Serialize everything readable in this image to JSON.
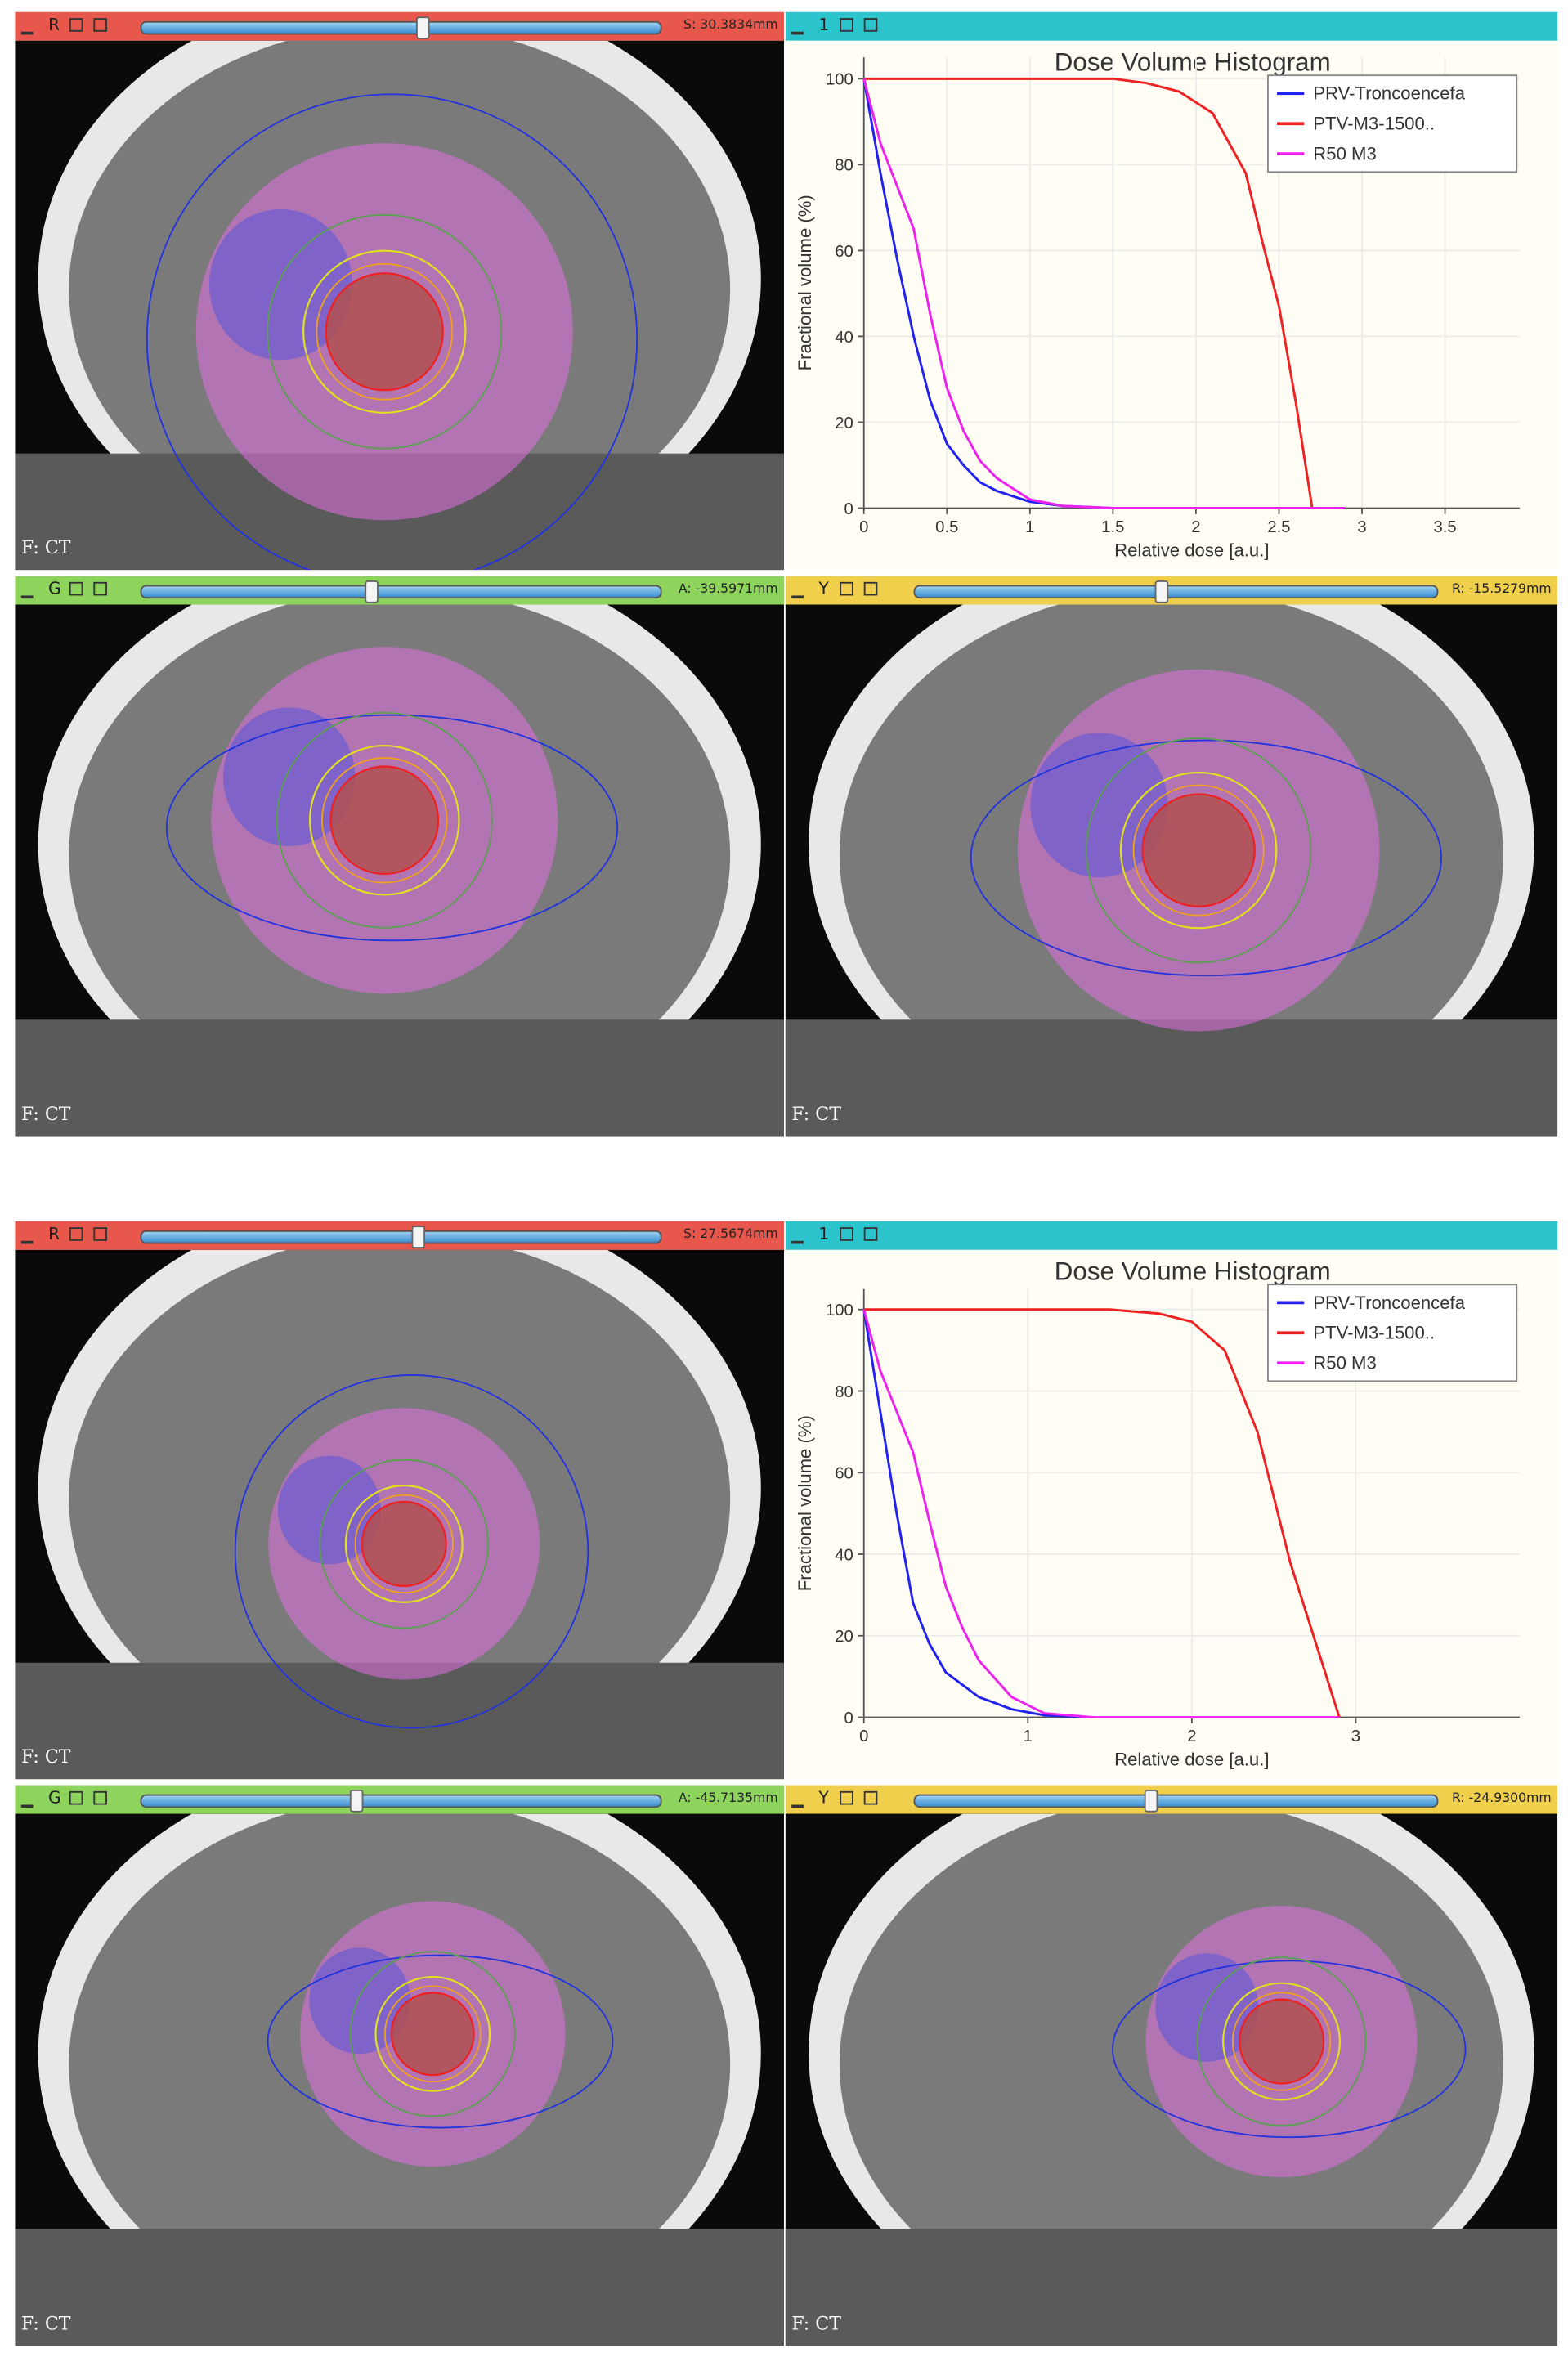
{
  "layouts": [
    {
      "views": [
        {
          "label": "R",
          "color": "#e8574b",
          "offset": "S: 30.3834mm",
          "footer": "F: CT"
        },
        {
          "label": "1",
          "color": "#2cc4cc"
        },
        {
          "label": "G",
          "color": "#8dd35c",
          "offset": "A: -39.5971mm",
          "footer": "F: CT"
        },
        {
          "label": "Y",
          "color": "#f0cf4c",
          "offset": "R: -15.5279mm",
          "footer": "F: CT"
        }
      ]
    },
    {
      "views": [
        {
          "label": "R",
          "color": "#e8574b",
          "offset": "S: 27.5674mm",
          "footer": "F: CT"
        },
        {
          "label": "1",
          "color": "#2cc4cc"
        },
        {
          "label": "G",
          "color": "#8dd35c",
          "offset": "A: -45.7135mm",
          "footer": "F: CT"
        },
        {
          "label": "Y",
          "color": "#f0cf4c",
          "offset": "R: -24.9300mm",
          "footer": "F: CT"
        }
      ]
    }
  ],
  "chart_data": [
    {
      "type": "line",
      "title": "Dose Volume Histogram",
      "x_label": "Relative dose [a.u.]",
      "y_label": "Fractional volume (%)",
      "xlim": [
        0,
        3.95
      ],
      "xticks": [
        0,
        0.5,
        1,
        1.5,
        2,
        2.5,
        3,
        3.5
      ],
      "ylim": [
        0,
        105
      ],
      "yticks": [
        0,
        20,
        40,
        60,
        80,
        100
      ],
      "grid": true,
      "legend": "upper right",
      "series": [
        {
          "name": "PRV-Troncoencefa",
          "color": "#2222ee",
          "x": [
            0,
            0.1,
            0.2,
            0.3,
            0.4,
            0.5,
            0.6,
            0.7,
            0.8,
            1.0,
            1.2,
            1.5
          ],
          "values": [
            100,
            78,
            58,
            40,
            25,
            15,
            10,
            6,
            4,
            1.5,
            0.5,
            0
          ]
        },
        {
          "name": "PTV-M3-1500..",
          "color": "#ee2222",
          "x": [
            0,
            1.0,
            1.5,
            1.7,
            1.9,
            2.1,
            2.3,
            2.4,
            2.5,
            2.6,
            2.7
          ],
          "values": [
            100,
            100,
            100,
            99,
            97,
            92,
            78,
            62,
            47,
            25,
            0
          ]
        },
        {
          "name": "R50 M3",
          "color": "#ee22ee",
          "x": [
            0,
            0.1,
            0.2,
            0.3,
            0.4,
            0.5,
            0.6,
            0.7,
            0.8,
            1.0,
            1.2,
            1.5,
            2.0,
            2.5,
            2.9
          ],
          "values": [
            100,
            85,
            75,
            65,
            45,
            28,
            18,
            11,
            7,
            2,
            0.5,
            0,
            0,
            0,
            0
          ]
        }
      ]
    },
    {
      "type": "line",
      "title": "Dose Volume Histogram",
      "x_label": "Relative dose [a.u.]",
      "y_label": "Fractional volume (%)",
      "xlim": [
        0,
        4
      ],
      "xticks": [
        0,
        1,
        2,
        3
      ],
      "ylim": [
        0,
        105
      ],
      "yticks": [
        0,
        20,
        40,
        60,
        80,
        100
      ],
      "grid": true,
      "legend": "upper right",
      "series": [
        {
          "name": "PRV-Troncoencefa",
          "color": "#2222ee",
          "x": [
            0,
            0.1,
            0.2,
            0.3,
            0.4,
            0.5,
            0.7,
            0.9,
            1.1,
            1.4
          ],
          "values": [
            100,
            75,
            50,
            28,
            18,
            11,
            5,
            2,
            0.5,
            0
          ]
        },
        {
          "name": "PTV-M3-1500..",
          "color": "#ee2222",
          "x": [
            0,
            1.0,
            1.5,
            1.8,
            2.0,
            2.2,
            2.4,
            2.6,
            2.9
          ],
          "values": [
            100,
            100,
            100,
            99,
            97,
            90,
            70,
            38,
            0
          ]
        },
        {
          "name": "R50 M3",
          "color": "#ee22ee",
          "x": [
            0,
            0.1,
            0.2,
            0.3,
            0.4,
            0.5,
            0.6,
            0.7,
            0.9,
            1.1,
            1.4,
            2.9
          ],
          "values": [
            100,
            85,
            75,
            65,
            48,
            32,
            22,
            14,
            5,
            1,
            0,
            0
          ]
        }
      ]
    }
  ]
}
